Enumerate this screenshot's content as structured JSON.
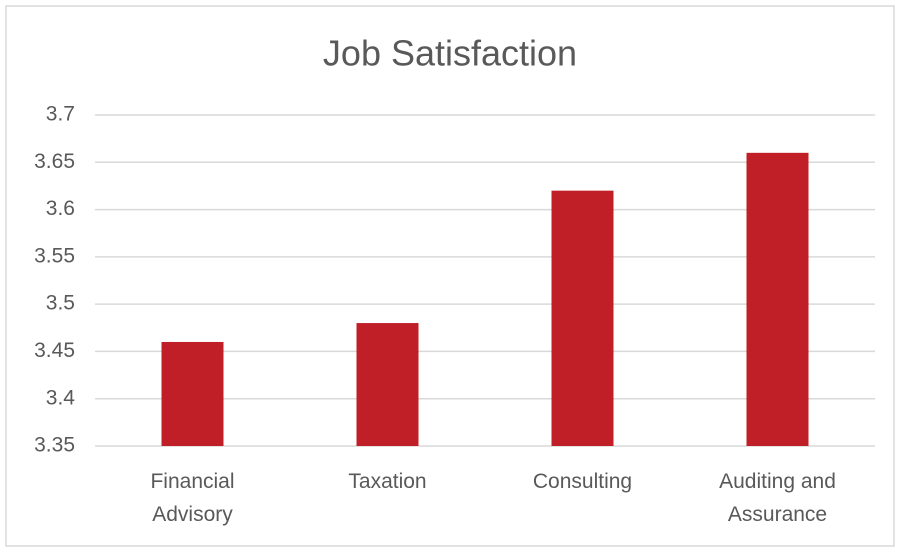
{
  "chart_data": {
    "type": "bar",
    "title": "Job Satisfaction",
    "categories": [
      "Financial Advisory",
      "Taxation",
      "Consulting",
      "Auditing and Assurance"
    ],
    "values": [
      3.46,
      3.48,
      3.62,
      3.66
    ],
    "color": "#c01f27",
    "ylim": [
      3.35,
      3.7
    ],
    "yticks": [
      3.35,
      3.4,
      3.45,
      3.5,
      3.55,
      3.6,
      3.65,
      3.7
    ],
    "grid": true
  }
}
